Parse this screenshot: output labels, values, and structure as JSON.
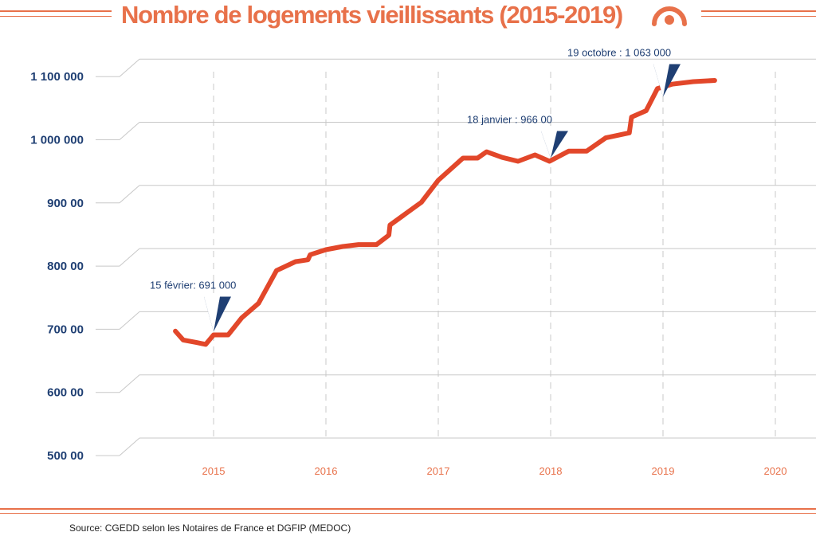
{
  "header": {
    "title": "Nombre de logements vieillissants (2015-2019)"
  },
  "footer": {
    "source": "Source: CGEDD selon les Notaires de France et DGFIP (MEDOC)"
  },
  "colors": {
    "accent": "#e8714a",
    "line": "#e2472a",
    "axis_text": "#1f3f73",
    "grid": "#c8c8c8"
  },
  "chart_data": {
    "type": "line",
    "title": "Nombre de logements vieillissants (2015-2019)",
    "xlabel": "",
    "ylabel": "",
    "x_ticks": [
      "2015",
      "2016",
      "2017",
      "2018",
      "2019",
      "2020"
    ],
    "x_tick_values": [
      2015,
      2016,
      2017,
      2018,
      2019,
      2020
    ],
    "y_ticks": [
      {
        "value": 500000,
        "label": "500 00"
      },
      {
        "value": 600000,
        "label": "600 00"
      },
      {
        "value": 700000,
        "label": "700 00"
      },
      {
        "value": 800000,
        "label": "800 00"
      },
      {
        "value": 900000,
        "label": "900 00"
      },
      {
        "value": 1000000,
        "label": "1 000 000"
      },
      {
        "value": 1100000,
        "label": "1 100 000"
      }
    ],
    "xlim": [
      2013.85,
      2020.2
    ],
    "ylim": [
      500000,
      1100000
    ],
    "grid": true,
    "series": [
      {
        "x": [
          2014.66,
          2014.73,
          2014.85,
          2014.93,
          2015.0,
          2015.13,
          2015.25,
          2015.4,
          2015.56,
          2015.73,
          2015.84,
          2015.86,
          2016.0,
          2016.15,
          2016.29,
          2016.45,
          2016.56,
          2016.57,
          2016.85,
          2017.0,
          2017.22,
          2017.35,
          2017.43,
          2017.57,
          2017.71,
          2017.86,
          2017.99,
          2018.16,
          2018.32,
          2018.49,
          2018.7,
          2018.72,
          2018.85,
          2018.95,
          2019.08,
          2019.27,
          2019.46
        ],
        "y": [
          697000,
          683000,
          679000,
          676000,
          691000,
          691000,
          718000,
          741000,
          793000,
          807000,
          810000,
          818000,
          826000,
          831000,
          834000,
          834000,
          849000,
          865000,
          901000,
          936000,
          971000,
          971000,
          981000,
          972000,
          966000,
          976000,
          966000,
          982000,
          982000,
          1003000,
          1011000,
          1036000,
          1046000,
          1081000,
          1088000,
          1092000,
          1094000
        ]
      }
    ],
    "annotations": [
      {
        "text": "15 février: 691 000",
        "x": 2015.0,
        "y": 691000
      },
      {
        "text": "18 janvier : 966 00",
        "x": 2018.0,
        "y": 966000
      },
      {
        "text": "19 octobre : 1 063 000",
        "x": 2019.0,
        "y": 1063000
      }
    ]
  }
}
